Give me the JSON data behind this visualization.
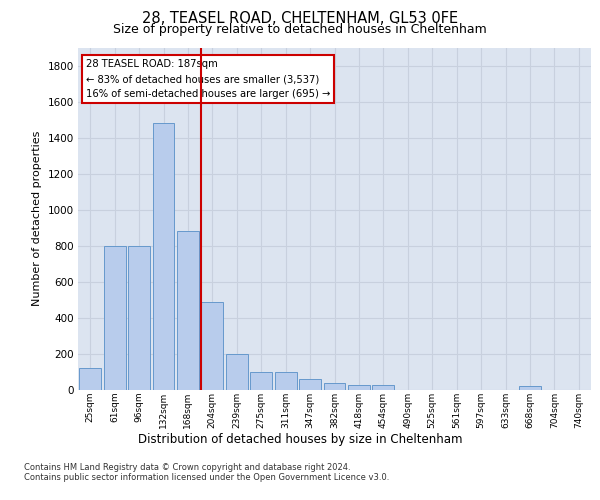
{
  "title1": "28, TEASEL ROAD, CHELTENHAM, GL53 0FE",
  "title2": "Size of property relative to detached houses in Cheltenham",
  "xlabel": "Distribution of detached houses by size in Cheltenham",
  "ylabel": "Number of detached properties",
  "categories": [
    "25sqm",
    "61sqm",
    "96sqm",
    "132sqm",
    "168sqm",
    "204sqm",
    "239sqm",
    "275sqm",
    "311sqm",
    "347sqm",
    "382sqm",
    "418sqm",
    "454sqm",
    "490sqm",
    "525sqm",
    "561sqm",
    "597sqm",
    "633sqm",
    "668sqm",
    "704sqm",
    "740sqm"
  ],
  "values": [
    120,
    800,
    800,
    1480,
    880,
    490,
    200,
    100,
    100,
    60,
    40,
    30,
    25,
    2,
    2,
    2,
    2,
    2,
    20,
    2,
    2
  ],
  "bar_color": "#b8ccec",
  "bar_edge_color": "#6699cc",
  "red_line_index": 5,
  "red_line_color": "#cc0000",
  "annotation_line1": "28 TEASEL ROAD: 187sqm",
  "annotation_line2": "← 83% of detached houses are smaller (3,537)",
  "annotation_line3": "16% of semi-detached houses are larger (695) →",
  "annotation_box_color": "#cc0000",
  "ylim": [
    0,
    1900
  ],
  "yticks": [
    0,
    200,
    400,
    600,
    800,
    1000,
    1200,
    1400,
    1600,
    1800
  ],
  "grid_color": "#c8d0de",
  "bg_color": "#dce4f0",
  "footer1": "Contains HM Land Registry data © Crown copyright and database right 2024.",
  "footer2": "Contains public sector information licensed under the Open Government Licence v3.0."
}
